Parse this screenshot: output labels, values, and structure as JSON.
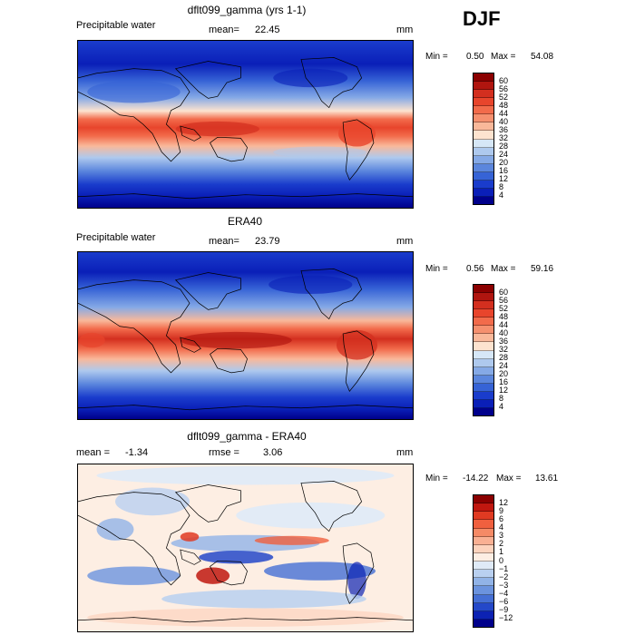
{
  "season": "DJF",
  "panels": [
    {
      "title": "dflt099_gamma (yrs 1-1)",
      "left_label": "Precipitable water",
      "mid_label": "mean=",
      "mid_value": "22.45",
      "unit": "mm",
      "min_label": "Min =",
      "min_value": "0.50",
      "max_label": "Max =",
      "max_value": "54.08",
      "colorbar_labels": [
        "60",
        "56",
        "52",
        "48",
        "44",
        "40",
        "36",
        "32",
        "28",
        "24",
        "20",
        "16",
        "12",
        "8",
        "4"
      ],
      "colors": [
        "#8b0000",
        "#b0150f",
        "#d32f1f",
        "#e8452c",
        "#f26b4b",
        "#f5906f",
        "#f9b89a",
        "#fde3cf",
        "#d6e7f7",
        "#aec9ee",
        "#85a9e6",
        "#5b86dd",
        "#3663d6",
        "#1a3ccc",
        "#0a1fb8",
        "#00008b"
      ],
      "diverging": false
    },
    {
      "title": "ERA40",
      "left_label": "Precipitable water",
      "mid_label": "mean=",
      "mid_value": "23.79",
      "unit": "mm",
      "min_label": "Min =",
      "min_value": "0.56",
      "max_label": "Max =",
      "max_value": "59.16",
      "colorbar_labels": [
        "60",
        "56",
        "52",
        "48",
        "44",
        "40",
        "36",
        "32",
        "28",
        "24",
        "20",
        "16",
        "12",
        "8",
        "4"
      ],
      "colors": [
        "#8b0000",
        "#b0150f",
        "#d32f1f",
        "#e8452c",
        "#f26b4b",
        "#f5906f",
        "#f9b89a",
        "#fde3cf",
        "#d6e7f7",
        "#aec9ee",
        "#85a9e6",
        "#5b86dd",
        "#3663d6",
        "#1a3ccc",
        "#0a1fb8",
        "#00008b"
      ],
      "diverging": false
    },
    {
      "title": "dflt099_gamma - ERA40",
      "left_label": "mean =",
      "left_value": "-1.34",
      "mid_label": "rmse =",
      "mid_value": "3.06",
      "unit": "mm",
      "min_label": "Min =",
      "min_value": "-14.22",
      "max_label": "Max =",
      "max_value": "13.61",
      "colorbar_labels": [
        "12",
        "9",
        "6",
        "4",
        "3",
        "2",
        "1",
        "0",
        "−1",
        "−2",
        "−3",
        "−4",
        "−6",
        "−9",
        "−12"
      ],
      "colors": [
        "#8b0000",
        "#c0170f",
        "#e03a22",
        "#f0603f",
        "#f58a66",
        "#f9b093",
        "#fcd3bd",
        "#fdeee3",
        "#dfeaf7",
        "#b9d0f0",
        "#91b3e7",
        "#6b93de",
        "#456fd5",
        "#2448c9",
        "#0c22b3",
        "#00008b"
      ],
      "diverging": true
    }
  ]
}
